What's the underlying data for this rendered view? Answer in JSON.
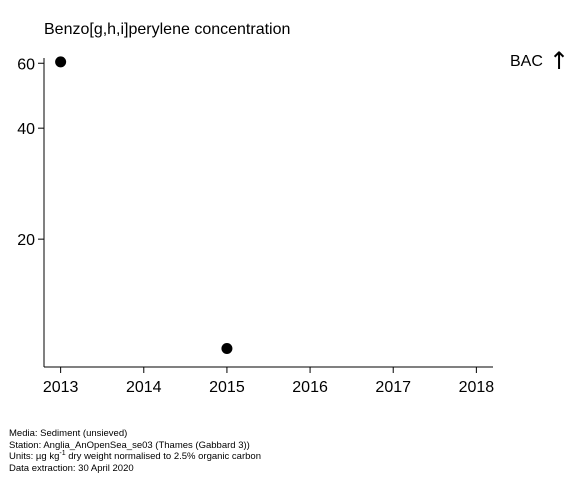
{
  "chart_data": {
    "type": "scatter",
    "title": "Benzo[g,h,i]perylene concentration",
    "xlabel": "",
    "ylabel": "",
    "x_ticks": [
      2013,
      2014,
      2015,
      2016,
      2017,
      2018
    ],
    "y_ticks": [
      20,
      40,
      60
    ],
    "xlim": [
      2012.8,
      2018.2
    ],
    "ylim": [
      9,
      62
    ],
    "y_scale": "log",
    "series": [
      {
        "x": [
          2013,
          2015
        ],
        "values": [
          60.5,
          10.1
        ]
      }
    ],
    "annotation": {
      "label": "BAC",
      "symbol": "↑",
      "position": "top-right"
    }
  },
  "footer": {
    "media": "Media: Sediment (unsieved)",
    "station": "Station: Anglia_AnOpenSea_se03 (Thames (Gabbard 3))",
    "units_prefix": "Units:  µg kg",
    "units_sup": "-1",
    "units_suffix": " dry weight normalised to 2.5% organic carbon",
    "extraction": "Data extraction: 30 April 2020"
  }
}
